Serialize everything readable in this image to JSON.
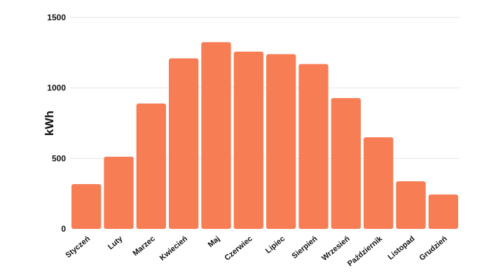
{
  "chart_data": {
    "type": "bar",
    "title": "",
    "xlabel": "",
    "ylabel": "kWh",
    "categories": [
      "Styczeń",
      "Luty",
      "Marzec",
      "Kwiecień",
      "Maj",
      "Czerwiec",
      "Lipiec",
      "Sierpień",
      "Wrzesień",
      "Październik",
      "Listopad",
      "Grudzień"
    ],
    "values": [
      318,
      512,
      890,
      1210,
      1325,
      1258,
      1240,
      1170,
      928,
      650,
      338,
      244
    ],
    "ylim": [
      0,
      1500
    ],
    "yticks": [
      "0",
      "500",
      "1000",
      "1500"
    ],
    "grid": true,
    "legend": "none",
    "bar_color": "#f77d55"
  }
}
